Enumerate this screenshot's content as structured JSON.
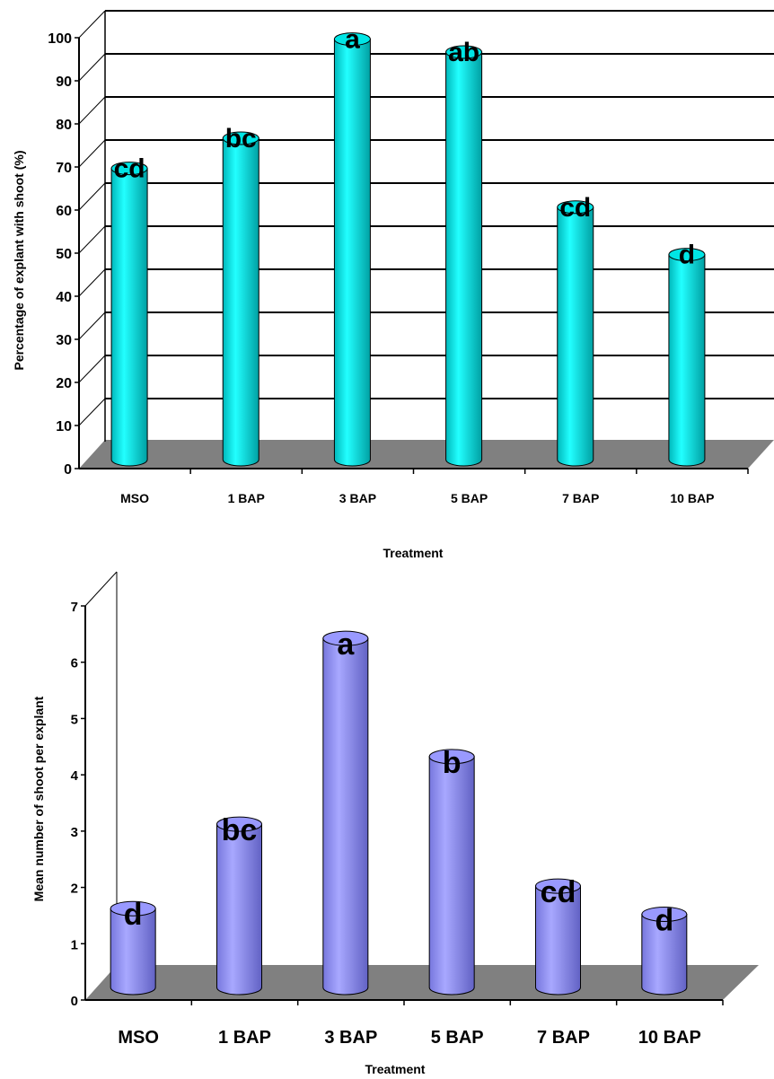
{
  "chart_data": [
    {
      "type": "bar",
      "categories": [
        "MSO",
        "1 BAP",
        "3 BAP",
        "5 BAP",
        "7 BAP",
        "10 BAP"
      ],
      "values": [
        68,
        75,
        98,
        95,
        59,
        48
      ],
      "letters": [
        "cd",
        "bc",
        "a",
        "ab",
        "cd",
        "d"
      ],
      "yticks": [
        "0",
        "10",
        "20",
        "30",
        "40",
        "50",
        "60",
        "70",
        "80",
        "90",
        "100"
      ],
      "ylim": [
        0,
        100
      ],
      "xlabel": "Treatment",
      "ylabel": "Percentage of explant with shoot (%)",
      "grid": true,
      "colors": {
        "bar": "#00e5e5",
        "bar_dark": "#00a5a8",
        "floor": "#808080"
      }
    },
    {
      "type": "bar",
      "categories": [
        "MSO",
        "1 BAP",
        "3 BAP",
        "5 BAP",
        "7 BAP",
        "10 BAP"
      ],
      "values": [
        1.4,
        2.9,
        6.2,
        4.1,
        1.8,
        1.3
      ],
      "letters": [
        "d",
        "bc",
        "a",
        "b",
        "cd",
        "d"
      ],
      "yticks": [
        "0",
        "1",
        "2",
        "3",
        "4",
        "5",
        "6",
        "7"
      ],
      "ylim": [
        0,
        7
      ],
      "xlabel": "Treatment",
      "ylabel": "Mean number of shoot per explant",
      "grid": false,
      "colors": {
        "bar": "#9999ff",
        "bar_dark": "#6a6ad0",
        "floor": "#808080"
      }
    }
  ]
}
